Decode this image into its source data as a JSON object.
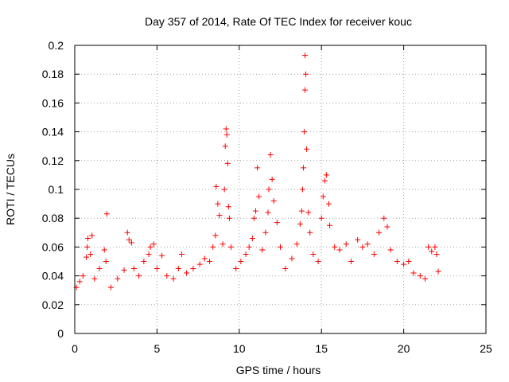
{
  "chart_data": {
    "type": "scatter",
    "title": "Day 357 of 2014, Rate Of TEC Index for receiver kouc",
    "xlabel": "GPS time / hours",
    "ylabel": "ROTI / TECUs",
    "xlim": [
      0,
      25
    ],
    "ylim": [
      0,
      0.2
    ],
    "xticks": [
      0,
      5,
      10,
      15,
      20,
      25
    ],
    "yticks": [
      0,
      0.02,
      0.04,
      0.06,
      0.08,
      0.1,
      0.12,
      0.14,
      0.16,
      0.18,
      0.2
    ],
    "grid": true,
    "marker": "+",
    "colors": {
      "series": "#ff0000",
      "grid": "#a0a0a0",
      "axis": "#000000"
    },
    "series": [
      {
        "points": [
          [
            0.1,
            0.032
          ],
          [
            0.3,
            0.036
          ],
          [
            0.5,
            0.04
          ],
          [
            0.7,
            0.053
          ],
          [
            0.75,
            0.06
          ],
          [
            0.8,
            0.066
          ],
          [
            0.95,
            0.055
          ],
          [
            1.05,
            0.068
          ],
          [
            1.2,
            0.038
          ],
          [
            1.5,
            0.045
          ],
          [
            1.8,
            0.058
          ],
          [
            1.9,
            0.05
          ],
          [
            1.95,
            0.083
          ],
          [
            2.2,
            0.032
          ],
          [
            2.6,
            0.038
          ],
          [
            3.0,
            0.044
          ],
          [
            3.2,
            0.07
          ],
          [
            3.3,
            0.065
          ],
          [
            3.45,
            0.063
          ],
          [
            3.6,
            0.045
          ],
          [
            3.9,
            0.04
          ],
          [
            4.2,
            0.05
          ],
          [
            4.5,
            0.055
          ],
          [
            4.6,
            0.06
          ],
          [
            4.8,
            0.062
          ],
          [
            5.0,
            0.045
          ],
          [
            5.3,
            0.054
          ],
          [
            5.6,
            0.04
          ],
          [
            6.0,
            0.038
          ],
          [
            6.3,
            0.045
          ],
          [
            6.5,
            0.055
          ],
          [
            6.8,
            0.042
          ],
          [
            7.2,
            0.045
          ],
          [
            7.6,
            0.048
          ],
          [
            7.9,
            0.052
          ],
          [
            8.2,
            0.05
          ],
          [
            8.4,
            0.06
          ],
          [
            8.55,
            0.068
          ],
          [
            8.6,
            0.102
          ],
          [
            8.7,
            0.09
          ],
          [
            8.8,
            0.082
          ],
          [
            9.0,
            0.062
          ],
          [
            9.1,
            0.1
          ],
          [
            9.15,
            0.13
          ],
          [
            9.2,
            0.142
          ],
          [
            9.25,
            0.138
          ],
          [
            9.3,
            0.118
          ],
          [
            9.35,
            0.088
          ],
          [
            9.4,
            0.08
          ],
          [
            9.5,
            0.06
          ],
          [
            9.8,
            0.045
          ],
          [
            10.1,
            0.05
          ],
          [
            10.4,
            0.055
          ],
          [
            10.6,
            0.06
          ],
          [
            10.8,
            0.066
          ],
          [
            10.9,
            0.08
          ],
          [
            11.0,
            0.085
          ],
          [
            11.1,
            0.115
          ],
          [
            11.2,
            0.095
          ],
          [
            11.4,
            0.058
          ],
          [
            11.6,
            0.07
          ],
          [
            11.75,
            0.084
          ],
          [
            11.8,
            0.1
          ],
          [
            11.9,
            0.124
          ],
          [
            12.0,
            0.107
          ],
          [
            12.1,
            0.092
          ],
          [
            12.3,
            0.077
          ],
          [
            12.5,
            0.06
          ],
          [
            12.8,
            0.045
          ],
          [
            13.2,
            0.052
          ],
          [
            13.5,
            0.062
          ],
          [
            13.7,
            0.076
          ],
          [
            13.8,
            0.085
          ],
          [
            13.85,
            0.1
          ],
          [
            13.9,
            0.115
          ],
          [
            13.95,
            0.14
          ],
          [
            14.0,
            0.169
          ],
          [
            14.05,
            0.18
          ],
          [
            14.0,
            0.193
          ],
          [
            14.1,
            0.128
          ],
          [
            14.2,
            0.084
          ],
          [
            14.3,
            0.07
          ],
          [
            14.5,
            0.055
          ],
          [
            14.8,
            0.05
          ],
          [
            15.0,
            0.08
          ],
          [
            15.1,
            0.095
          ],
          [
            15.2,
            0.106
          ],
          [
            15.3,
            0.11
          ],
          [
            15.45,
            0.09
          ],
          [
            15.5,
            0.075
          ],
          [
            15.8,
            0.06
          ],
          [
            16.1,
            0.058
          ],
          [
            16.5,
            0.062
          ],
          [
            16.8,
            0.05
          ],
          [
            17.2,
            0.065
          ],
          [
            17.5,
            0.06
          ],
          [
            17.8,
            0.062
          ],
          [
            18.2,
            0.055
          ],
          [
            18.5,
            0.07
          ],
          [
            18.8,
            0.08
          ],
          [
            19.0,
            0.074
          ],
          [
            19.2,
            0.058
          ],
          [
            19.6,
            0.05
          ],
          [
            20.0,
            0.048
          ],
          [
            20.3,
            0.05
          ],
          [
            20.6,
            0.042
          ],
          [
            21.0,
            0.04
          ],
          [
            21.3,
            0.038
          ],
          [
            21.5,
            0.06
          ],
          [
            21.7,
            0.057
          ],
          [
            21.9,
            0.06
          ],
          [
            22.0,
            0.055
          ],
          [
            22.1,
            0.043
          ]
        ]
      }
    ]
  }
}
